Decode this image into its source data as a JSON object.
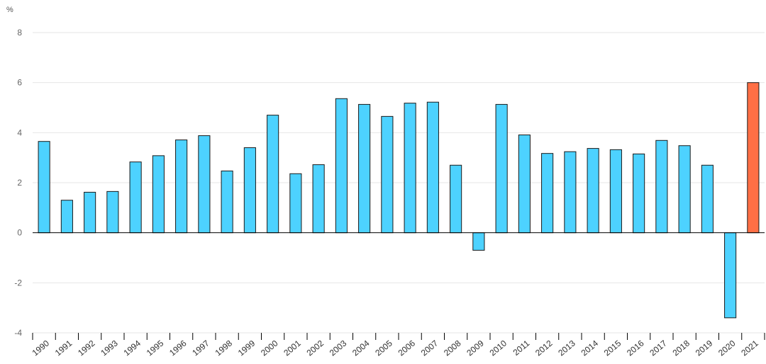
{
  "chart_data": {
    "type": "bar",
    "unit": "%",
    "categories": [
      "1990",
      "1991",
      "1992",
      "1993",
      "1994",
      "1995",
      "1996",
      "1997",
      "1998",
      "1999",
      "2000",
      "2001",
      "2002",
      "2003",
      "2004",
      "2005",
      "2006",
      "2007",
      "2008",
      "2009",
      "2010",
      "2011",
      "2012",
      "2013",
      "2014",
      "2015",
      "2016",
      "2017",
      "2018",
      "2019",
      "2020",
      "2021"
    ],
    "values": [
      3.65,
      1.3,
      1.62,
      1.65,
      2.83,
      3.08,
      3.71,
      3.88,
      2.47,
      3.4,
      4.7,
      2.36,
      2.72,
      5.36,
      5.13,
      4.65,
      5.18,
      5.22,
      2.7,
      -0.7,
      5.13,
      3.91,
      3.17,
      3.24,
      3.37,
      3.32,
      3.15,
      3.69,
      3.48,
      2.7,
      -3.4,
      6.0
    ],
    "highlight_category": "2021",
    "colors": {
      "bar": "#4dd2ff",
      "highlight": "#ff6f45",
      "stroke": "#1a1a1a",
      "grid": "#e6e6e6",
      "axis": "#000000"
    },
    "ylim": [
      -4,
      8
    ],
    "yticks": [
      -4,
      -2,
      0,
      2,
      4,
      6,
      8
    ],
    "grid": true,
    "legend": "none",
    "title": "",
    "xlabel": "",
    "ylabel": ""
  }
}
